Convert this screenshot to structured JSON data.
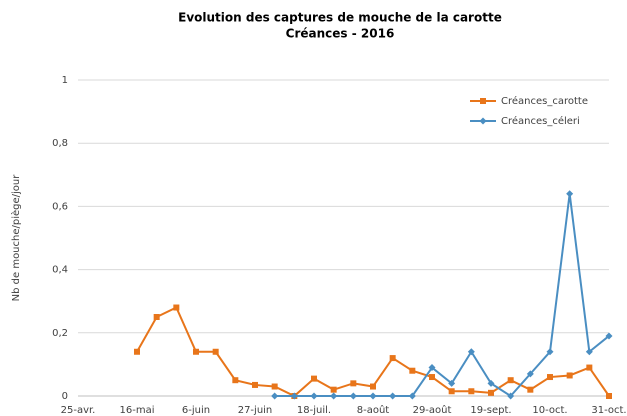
{
  "chart_data": {
    "type": "line",
    "title": "Evolution des captures de mouche de la carotte",
    "subtitle": "Créances  - 2016",
    "y_label": "Nb de mouche/piège/jour",
    "categories": [
      "25-avr.",
      null,
      null,
      null,
      null,
      null,
      null,
      null,
      null,
      null,
      null,
      null,
      null,
      null,
      null,
      null,
      null,
      null,
      null,
      null,
      null,
      null,
      null,
      null,
      null,
      null,
      null,
      "31-oct."
    ],
    "x_tick_labels": [
      {
        "index": 0,
        "label": "25-avr."
      },
      {
        "index": 3,
        "label": "16-mai"
      },
      {
        "index": 6,
        "label": "6-juin"
      },
      {
        "index": 9,
        "label": "27-juin"
      },
      {
        "index": 12,
        "label": "18-juil."
      },
      {
        "index": 15,
        "label": "8-août"
      },
      {
        "index": 18,
        "label": "29-août"
      },
      {
        "index": 21,
        "label": "19-sept."
      },
      {
        "index": 24,
        "label": "10-oct."
      },
      {
        "index": 27,
        "label": "31-oct."
      }
    ],
    "series": [
      {
        "name": "Créances_carotte",
        "color": "#e8751a",
        "marker": "square",
        "values": [
          null,
          null,
          null,
          0.14,
          0.25,
          0.28,
          0.14,
          0.14,
          0.05,
          0.035,
          0.03,
          0.0,
          0.055,
          0.02,
          0.04,
          0.03,
          0.12,
          0.08,
          0.06,
          0.015,
          0.015,
          0.01,
          0.05,
          0.02,
          0.06,
          0.065,
          0.09,
          0.0
        ]
      },
      {
        "name": "Créances_céleri",
        "color": "#4a8ec2",
        "marker": "diamond",
        "values": [
          null,
          null,
          null,
          null,
          null,
          null,
          null,
          null,
          null,
          null,
          0,
          0,
          0,
          0,
          0,
          0,
          0,
          0,
          0.09,
          0.04,
          0.14,
          0.04,
          0,
          0.07,
          0.14,
          0.64,
          0.14,
          0.19
        ]
      }
    ],
    "ylim": [
      0,
      1
    ],
    "yticks": [
      0,
      {
        "value": 0.2,
        "label": "0,2"
      },
      {
        "value": 0.4,
        "label": "0,4"
      },
      {
        "value": 0.6,
        "label": "0,6"
      },
      {
        "value": 0.8,
        "label": "0,8"
      },
      1
    ],
    "grid": true,
    "legend": "top-right"
  }
}
